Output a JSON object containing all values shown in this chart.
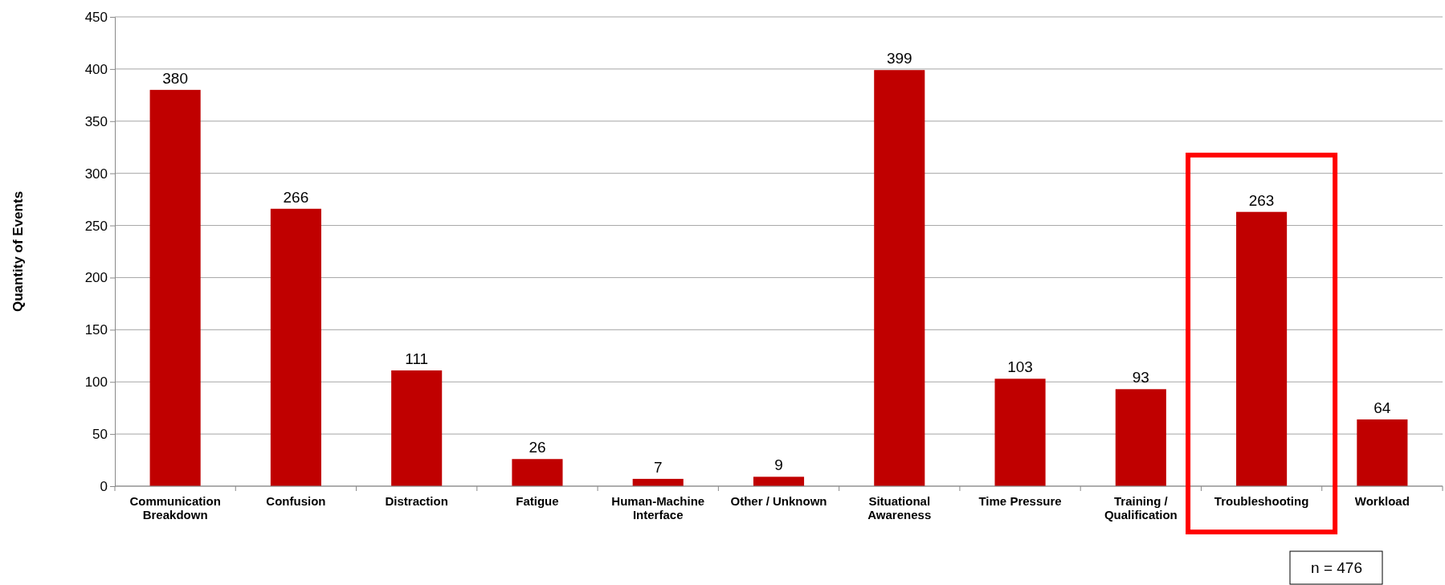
{
  "chart_data": {
    "type": "bar",
    "ylabel": "Quantity of Events",
    "categories": [
      "Communication Breakdown",
      "Confusion",
      "Distraction",
      "Fatigue",
      "Human-Machine Interface",
      "Other / Unknown",
      "Situational Awareness",
      "Time Pressure",
      "Training / Qualification",
      "Troubleshooting",
      "Workload"
    ],
    "values": [
      380,
      266,
      111,
      26,
      7,
      9,
      399,
      103,
      93,
      263,
      64
    ],
    "color": "#c00000",
    "ylim": [
      0,
      450
    ],
    "yticks": [
      0,
      50,
      100,
      150,
      200,
      250,
      300,
      350,
      400,
      450
    ],
    "grid": "y",
    "data_labels": true,
    "annotations": [
      "n = 476"
    ]
  }
}
